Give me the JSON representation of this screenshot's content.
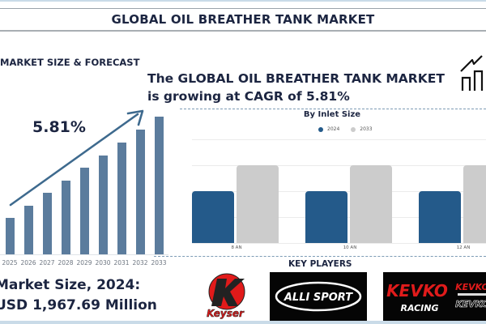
{
  "header": {
    "title": "GLOBAL OIL BREATHER TANK MARKET"
  },
  "left_panel": {
    "heading": "MARKET SIZE & FORECAST",
    "cagr_label": "5.81%",
    "market_size_line1": "Market Size, 2024:",
    "market_size_line2": "USD 1,967.69 Million"
  },
  "right_panel": {
    "heading": "The GLOBAL OIL BREATHER TANK MARKET is growing at CAGR of 5.81%",
    "icon": "growth-chart-icon"
  },
  "key_players": {
    "title": "KEY PLAYERS",
    "logos": [
      {
        "name": "Keyser",
        "text": "Keyser",
        "letter": "K"
      },
      {
        "name": "AlliSport",
        "text": "ALLI SPORT"
      },
      {
        "name": "Kevko Racing",
        "text": "KEVKO",
        "subtext": "RACING"
      }
    ]
  },
  "colors": {
    "title_text": "#1c2541",
    "forecast_bar": "#5b7c9d",
    "series_2024": "#245a8a",
    "series_2033": "#cccccc",
    "dashed_divider": "#7d9bb5",
    "kevko_red": "#e01b1b"
  },
  "chart_data": [
    {
      "type": "bar",
      "title": "MARKET SIZE & FORECAST",
      "categories": [
        "2025",
        "2026",
        "2027",
        "2028",
        "2029",
        "2030",
        "2031",
        "2032",
        "2033"
      ],
      "values": [
        46,
        61,
        77,
        92,
        108,
        123,
        139,
        155,
        171
      ],
      "annotation": "5.81%",
      "xlabel": "",
      "ylabel": "",
      "grid": false,
      "note": "Relative bar heights (px), no y-axis shown; upward trend arrow annotated with CAGR 5.81%"
    },
    {
      "type": "bar",
      "title": "By Inlet Size",
      "categories": [
        "8 AN",
        "10 AN",
        "12 AN"
      ],
      "series": [
        {
          "name": "2024",
          "values": [
            2,
            2,
            2
          ]
        },
        {
          "name": "2033",
          "values": [
            3,
            3,
            3
          ]
        }
      ],
      "legend_position": "top",
      "grid": true,
      "ylim": [
        0,
        4
      ],
      "xlabel": "",
      "ylabel": "",
      "note": "No y-axis tick labels shown; values estimated from gridlines"
    }
  ]
}
